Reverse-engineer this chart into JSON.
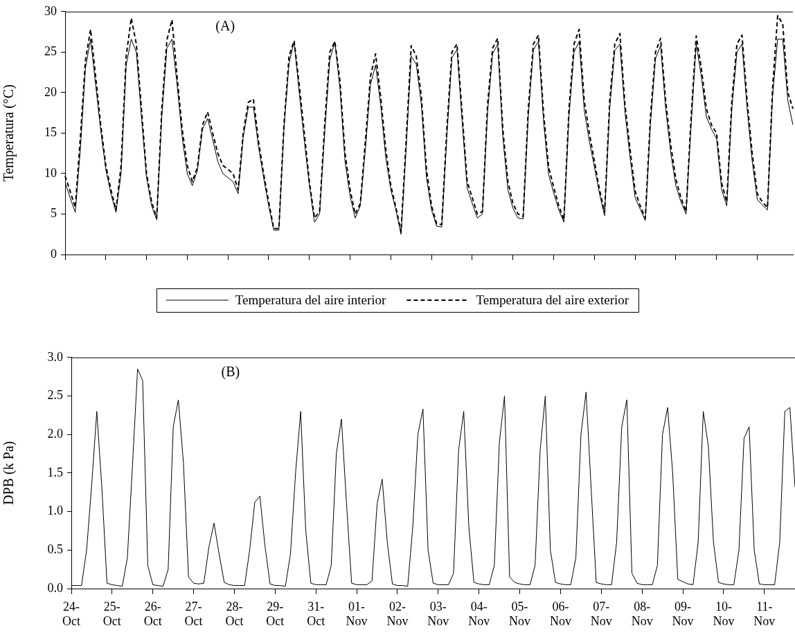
{
  "chart_data": [
    {
      "type": "line",
      "ylabel": "Temperatura (°C)",
      "annotations": [
        "(A)"
      ],
      "legend": "bottom",
      "tick_labels": "y",
      "categories": [
        null,
        null,
        null,
        null,
        null,
        null,
        null,
        null,
        null,
        null,
        null,
        null,
        null,
        null,
        null,
        null,
        null,
        null,
        null,
        null,
        null,
        null,
        null,
        null,
        null,
        null,
        null,
        null,
        null,
        null,
        null,
        null,
        null,
        null,
        null,
        null,
        null,
        null,
        null,
        null,
        null,
        null,
        null,
        null,
        null,
        null,
        null,
        null,
        null,
        null,
        null,
        null,
        null,
        null,
        null,
        null,
        null,
        null,
        null,
        null,
        null,
        null,
        null,
        null,
        null,
        null,
        null,
        null,
        null,
        null,
        null,
        null,
        null,
        null,
        null,
        null,
        null,
        null,
        null,
        null,
        null,
        null,
        null,
        null,
        null,
        null,
        null,
        null,
        null,
        null,
        null,
        null,
        null,
        null,
        null,
        null,
        null,
        null,
        null,
        null,
        null,
        null,
        null,
        null,
        null,
        null,
        null,
        null,
        null,
        null,
        null,
        null,
        null,
        null,
        null,
        null,
        null,
        null,
        null,
        null,
        null,
        null,
        null,
        null,
        null,
        null,
        null,
        null,
        null,
        null,
        null,
        null,
        null,
        null,
        null,
        null,
        null,
        null,
        null,
        null,
        null,
        null,
        null,
        null
      ],
      "ylim": [
        0,
        30
      ],
      "yticks": [
        0,
        5,
        10,
        15,
        20,
        25,
        30
      ],
      "series": [
        {
          "name": "Temperatura del aire interior",
          "color": "#000000",
          "line_style": "solid",
          "values": [
            8.9,
            7.0,
            5.2,
            13,
            23,
            26.6,
            21,
            15.3,
            10.5,
            7.5,
            5.2,
            10,
            23.4,
            26.6,
            25,
            17,
            9.5,
            6,
            4.3,
            17,
            25.5,
            26.6,
            21,
            14.5,
            10,
            8.5,
            10.4,
            15.5,
            16.8,
            14.2,
            11.5,
            10,
            9.5,
            9.0,
            7.5,
            14.5,
            18.2,
            18.2,
            13.3,
            9.5,
            6,
            3,
            3,
            15.5,
            23.6,
            26.3,
            20,
            14,
            8.5,
            4,
            5,
            15,
            24,
            26.3,
            20.5,
            11.5,
            7.2,
            4.5,
            6,
            13,
            21,
            23.4,
            18.5,
            12,
            8,
            5.5,
            2.5,
            13,
            24.5,
            23.5,
            18.5,
            9.5,
            5.5,
            3.5,
            3.4,
            14.5,
            24.3,
            25.3,
            16.5,
            8.2,
            6.3,
            4.5,
            5,
            17.5,
            24.8,
            26,
            14.5,
            8,
            5.7,
            4.5,
            4.4,
            17,
            25.3,
            26.3,
            16.5,
            9.9,
            7.6,
            5.5,
            4.0,
            17,
            25,
            26.3,
            17.8,
            14,
            10.8,
            7.5,
            4.8,
            18,
            25.2,
            26,
            17.6,
            12,
            7.0,
            5.6,
            4.2,
            16,
            24.2,
            25.8,
            18,
            12.5,
            8.5,
            6.5,
            5.0,
            16,
            26.0,
            22,
            17,
            15.5,
            14.3,
            8,
            6,
            18,
            25,
            26,
            18,
            11.5,
            6.8,
            6.1,
            5.5,
            19.5,
            26.6,
            26.6,
            19,
            16
          ]
        },
        {
          "name": "Temperatura del aire exterior",
          "color": "#000000",
          "line_style": "dashed",
          "values": [
            9.7,
            7.8,
            5.8,
            14.5,
            24,
            27.8,
            22,
            16,
            11,
            8,
            5.5,
            11,
            24.5,
            29.2,
            26,
            18,
            10,
            6.5,
            4.5,
            18,
            26.5,
            29.0,
            22,
            15.5,
            11,
            9,
            10.8,
            16,
            17.6,
            15,
            12.5,
            11,
            10.5,
            10,
            8,
            15,
            18.8,
            19.2,
            14,
            10,
            6.5,
            3.2,
            3.2,
            16,
            24.5,
            26.4,
            21,
            15,
            9,
            4.5,
            5.3,
            16,
            25,
            26.3,
            21.5,
            12.5,
            8,
            5,
            6.3,
            14,
            22,
            24.8,
            19.5,
            13,
            8.5,
            5.8,
            2.8,
            14,
            25.8,
            24.5,
            19.5,
            10.5,
            6,
            3.8,
            3.7,
            15.5,
            25,
            26.0,
            17.5,
            9,
            7,
            5,
            5.3,
            18.5,
            25.5,
            26.7,
            15.5,
            9,
            6.3,
            5,
            4.7,
            18,
            26,
            27.1,
            17.5,
            10.8,
            8.3,
            6,
            4.3,
            18,
            26,
            27.8,
            19,
            15,
            11.5,
            8,
            5.2,
            19,
            26,
            27.3,
            18.5,
            13,
            7.8,
            6,
            4.5,
            17,
            25,
            26.7,
            19,
            13.5,
            9.3,
            7,
            5.3,
            17,
            27.0,
            23,
            18,
            16,
            15,
            8.8,
            6.5,
            19,
            26,
            27.1,
            19,
            12.5,
            7.5,
            6.5,
            5.8,
            20.5,
            29.5,
            28.5,
            20,
            18
          ]
        }
      ]
    },
    {
      "type": "line",
      "ylabel": "DPB (k Pa)",
      "annotations": [
        "(B)"
      ],
      "categories": [
        "24-\nOct",
        null,
        null,
        null,
        null,
        null,
        null,
        null,
        "25-\nOct",
        null,
        null,
        null,
        null,
        null,
        null,
        null,
        "26-\nOct",
        null,
        null,
        null,
        null,
        null,
        null,
        null,
        "27-\nOct",
        null,
        null,
        null,
        null,
        null,
        null,
        null,
        "28-\nOct",
        null,
        null,
        null,
        null,
        null,
        null,
        null,
        "29-\nOct",
        null,
        null,
        null,
        null,
        null,
        null,
        null,
        "31-\nOct",
        null,
        null,
        null,
        null,
        null,
        null,
        null,
        "01-\nNov",
        null,
        null,
        null,
        null,
        null,
        null,
        null,
        "02-\nNov",
        null,
        null,
        null,
        null,
        null,
        null,
        null,
        "03-\nNov",
        null,
        null,
        null,
        null,
        null,
        null,
        null,
        "04-\nNov",
        null,
        null,
        null,
        null,
        null,
        null,
        null,
        "05-\nNov",
        null,
        null,
        null,
        null,
        null,
        null,
        null,
        "06-\nNov",
        null,
        null,
        null,
        null,
        null,
        null,
        null,
        "07-\nNov",
        null,
        null,
        null,
        null,
        null,
        null,
        null,
        "08-\nNov",
        null,
        null,
        null,
        null,
        null,
        null,
        null,
        "09-\nNov",
        null,
        null,
        null,
        null,
        null,
        null,
        null,
        "10-\nNov",
        null,
        null,
        null,
        null,
        null,
        null,
        null,
        "11-\nNov",
        null,
        null,
        null,
        null,
        null,
        null
      ],
      "ylim": [
        0,
        3
      ],
      "yticks": [
        {
          "value": 0,
          "label": "0.0"
        },
        {
          "value": 0.5,
          "label": "0.5"
        },
        {
          "value": 1,
          "label": "1.0"
        },
        {
          "value": 1.5,
          "label": "1.5"
        },
        {
          "value": 2,
          "label": "2.0"
        },
        {
          "value": 2.5,
          "label": "2.5"
        },
        {
          "value": 3,
          "label": "3.0"
        }
      ],
      "series": [
        {
          "color": "#000000",
          "values": [
            0.04,
            0.04,
            0.04,
            0.5,
            1.35,
            2.3,
            1.3,
            0.07,
            0.05,
            0.04,
            0.03,
            0.4,
            1.6,
            2.85,
            2.7,
            0.3,
            0.05,
            0.04,
            0.03,
            0.25,
            2.1,
            2.45,
            1.63,
            0.15,
            0.07,
            0.06,
            0.07,
            0.54,
            0.85,
            0.45,
            0.08,
            0.05,
            0.04,
            0.04,
            0.04,
            0.5,
            1.12,
            1.2,
            0.55,
            0.06,
            0.04,
            0.04,
            0.03,
            0.45,
            1.5,
            2.3,
            0.75,
            0.07,
            0.05,
            0.05,
            0.05,
            0.3,
            1.75,
            2.2,
            1.1,
            0.07,
            0.05,
            0.05,
            0.05,
            0.1,
            1.1,
            1.42,
            0.6,
            0.06,
            0.04,
            0.04,
            0.03,
            0.8,
            2.0,
            2.33,
            0.5,
            0.07,
            0.05,
            0.05,
            0.05,
            0.2,
            1.8,
            2.3,
            0.8,
            0.08,
            0.06,
            0.05,
            0.05,
            0.3,
            1.9,
            2.5,
            0.15,
            0.08,
            0.06,
            0.05,
            0.05,
            0.3,
            1.8,
            2.5,
            0.5,
            0.08,
            0.06,
            0.05,
            0.05,
            0.4,
            2.0,
            2.55,
            1.3,
            0.08,
            0.06,
            0.05,
            0.05,
            0.6,
            2.1,
            2.45,
            0.2,
            0.07,
            0.05,
            0.05,
            0.05,
            0.3,
            2.0,
            2.35,
            1.5,
            0.12,
            0.09,
            0.06,
            0.05,
            0.6,
            2.3,
            1.85,
            0.6,
            0.08,
            0.06,
            0.05,
            0.05,
            0.5,
            1.95,
            2.1,
            0.5,
            0.06,
            0.05,
            0.05,
            0.05,
            0.6,
            2.3,
            2.35,
            1.32
          ]
        }
      ]
    }
  ]
}
